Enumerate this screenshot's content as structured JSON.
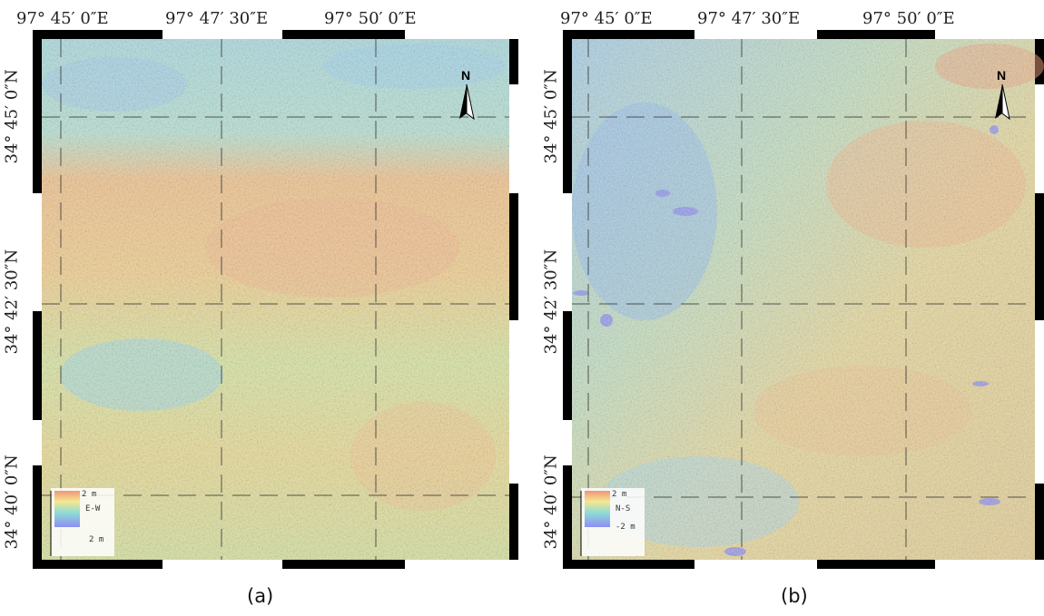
{
  "panels": [
    {
      "id": "a",
      "caption": "(a)",
      "lon_labels": [
        "97° 45′ 0″E",
        "97° 47′ 30″E",
        "97° 50′ 0″E"
      ],
      "lat_labels": [
        "34° 45′ 0″N",
        "34° 42′ 30″N",
        "34° 40′ 0″N"
      ],
      "north_label": "N",
      "legend": {
        "top": "2 m",
        "component": "E-W",
        "bottom": "2 m"
      }
    },
    {
      "id": "b",
      "caption": "(b)",
      "lon_labels": [
        "97° 45′ 0″E",
        "97° 47′ 30″E",
        "97° 50′ 0″E"
      ],
      "lat_labels": [
        "34° 45′ 0″N",
        "34° 42′ 30″N",
        "34° 40′ 0″N"
      ],
      "north_label": "N",
      "legend": {
        "top": "2 m",
        "component": "N-S",
        "bottom": "-2 m"
      }
    }
  ],
  "colors": {
    "ramp": [
      "#f2957a",
      "#f6c98a",
      "#f5e88f",
      "#c8ec9a",
      "#8fdcd6",
      "#8cc3f0",
      "#8d8ef2"
    ],
    "frame": "#000000",
    "grid": "#333333"
  },
  "icons": {
    "north_arrow": "north-arrow-icon"
  }
}
